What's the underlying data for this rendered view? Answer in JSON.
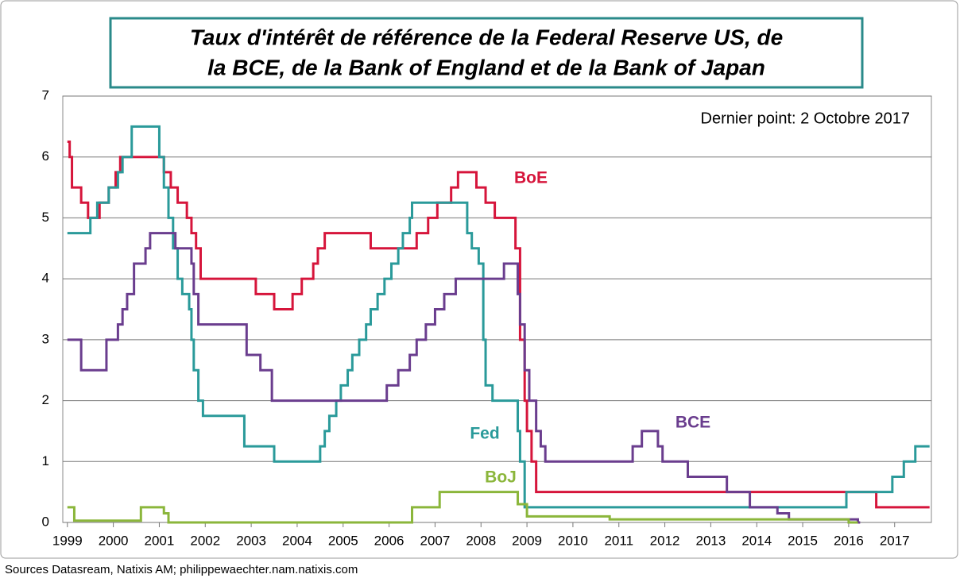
{
  "chart_data": {
    "type": "line",
    "step": true,
    "title": [
      "Taux d'intérêt de référence de la Federal Reserve US, de",
      "la BCE, de la Bank of England et de la Bank of Japan"
    ],
    "annotation": "Dernier point: 2 Octobre 2017",
    "source": "Sources Datasream, Natixis AM; philippewaechter.nam.natixis.com",
    "xlim": [
      1998.9,
      2017.8
    ],
    "ylim": [
      0,
      7
    ],
    "xticks": [
      1999,
      2000,
      2001,
      2002,
      2003,
      2004,
      2005,
      2006,
      2007,
      2008,
      2009,
      2010,
      2011,
      2012,
      2013,
      2014,
      2015,
      2016,
      2017
    ],
    "yticks": [
      0,
      1,
      2,
      3,
      4,
      5,
      6,
      7
    ],
    "grid": true,
    "series": [
      {
        "name": "BoE",
        "color": "#d6153b",
        "x": [
          1999.0,
          1999.05,
          1999.1,
          1999.3,
          1999.45,
          1999.7,
          1999.9,
          2000.05,
          2000.15,
          2001.1,
          2001.25,
          2001.4,
          2001.6,
          2001.7,
          2001.8,
          2001.9,
          2003.1,
          2003.5,
          2003.9,
          2004.1,
          2004.35,
          2004.45,
          2004.6,
          2005.6,
          2006.6,
          2006.85,
          2007.05,
          2007.35,
          2007.5,
          2007.9,
          2008.1,
          2008.3,
          2008.75,
          2008.85,
          2008.95,
          2009.0,
          2009.1,
          2009.2,
          2016.6,
          2017.76
        ],
        "values": [
          6.25,
          6.0,
          5.5,
          5.25,
          5.0,
          5.25,
          5.5,
          5.75,
          6.0,
          5.75,
          5.5,
          5.25,
          5.0,
          4.75,
          4.5,
          4.0,
          3.75,
          3.5,
          3.75,
          4.0,
          4.25,
          4.5,
          4.75,
          4.5,
          4.75,
          5.0,
          5.25,
          5.5,
          5.75,
          5.5,
          5.25,
          5.0,
          4.5,
          3.0,
          2.0,
          1.5,
          1.0,
          0.5,
          0.25,
          0.25
        ]
      },
      {
        "name": "Fed",
        "color": "#2a9a9a",
        "x": [
          1999.0,
          1999.5,
          1999.65,
          1999.9,
          2000.1,
          2000.2,
          2000.4,
          2001.0,
          2001.1,
          2001.2,
          2001.3,
          2001.4,
          2001.5,
          2001.65,
          2001.7,
          2001.75,
          2001.85,
          2001.95,
          2002.85,
          2003.5,
          2004.5,
          2004.6,
          2004.7,
          2004.85,
          2004.95,
          2005.1,
          2005.2,
          2005.35,
          2005.5,
          2005.6,
          2005.75,
          2005.9,
          2006.05,
          2006.2,
          2006.3,
          2006.45,
          2006.5,
          2007.7,
          2007.8,
          2007.95,
          2008.05,
          2008.1,
          2008.25,
          2008.8,
          2008.85,
          2008.95,
          2015.95,
          2016.95,
          2017.2,
          2017.45,
          2017.76
        ],
        "values": [
          4.75,
          5.0,
          5.25,
          5.5,
          5.75,
          6.0,
          6.5,
          6.0,
          5.5,
          5.0,
          4.5,
          4.0,
          3.75,
          3.5,
          3.0,
          2.5,
          2.0,
          1.75,
          1.25,
          1.0,
          1.25,
          1.5,
          1.75,
          2.0,
          2.25,
          2.5,
          2.75,
          3.0,
          3.25,
          3.5,
          3.75,
          4.0,
          4.25,
          4.5,
          4.75,
          5.0,
          5.25,
          4.75,
          4.5,
          4.25,
          3.0,
          2.25,
          2.0,
          1.5,
          1.0,
          0.25,
          0.5,
          0.75,
          1.0,
          1.25,
          1.25
        ]
      },
      {
        "name": "BCE",
        "color": "#6a3d8e",
        "x": [
          1999.0,
          1999.3,
          1999.85,
          2000.1,
          2000.2,
          2000.3,
          2000.45,
          2000.7,
          2000.8,
          2001.35,
          2001.7,
          2001.75,
          2001.85,
          2002.9,
          2003.2,
          2003.45,
          2005.95,
          2006.2,
          2006.45,
          2006.6,
          2006.8,
          2007.0,
          2007.2,
          2007.45,
          2008.5,
          2008.8,
          2008.85,
          2008.95,
          2009.05,
          2009.2,
          2009.3,
          2009.4,
          2011.3,
          2011.5,
          2011.85,
          2011.95,
          2012.5,
          2013.35,
          2013.85,
          2014.45,
          2014.7,
          2016.2,
          2016.25
        ],
        "values": [
          3.0,
          2.5,
          3.0,
          3.25,
          3.5,
          3.75,
          4.25,
          4.5,
          4.75,
          4.5,
          4.25,
          3.75,
          3.25,
          2.75,
          2.5,
          2.0,
          2.25,
          2.5,
          2.75,
          3.0,
          3.25,
          3.5,
          3.75,
          4.0,
          4.25,
          3.75,
          3.25,
          2.5,
          2.0,
          1.5,
          1.25,
          1.0,
          1.25,
          1.5,
          1.25,
          1.0,
          0.75,
          0.5,
          0.25,
          0.15,
          0.05,
          0.0,
          0.0
        ]
      },
      {
        "name": "BoJ",
        "color": "#8bb63b",
        "x": [
          1999.0,
          1999.15,
          2000.6,
          2001.1,
          2001.2,
          2006.5,
          2007.1,
          2008.8,
          2009.0,
          2010.8,
          2016.0,
          2016.2
        ],
        "values": [
          0.25,
          0.03,
          0.25,
          0.15,
          0.0,
          0.25,
          0.5,
          0.3,
          0.1,
          0.05,
          0.0,
          0.0
        ]
      }
    ]
  }
}
